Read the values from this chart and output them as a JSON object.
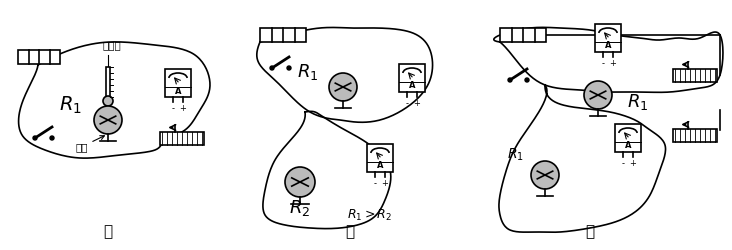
{
  "bg_color": "#ffffff",
  "label_jia": "甲",
  "label_yi": "乙",
  "label_bing": "丙",
  "label_wenduji": "温度计",
  "label_meiyou": "煤油",
  "lw": 1.2,
  "lw2": 2.0,
  "gray_fill": "#bbbbbb",
  "white_fill": "#ffffff",
  "black": "#000000"
}
